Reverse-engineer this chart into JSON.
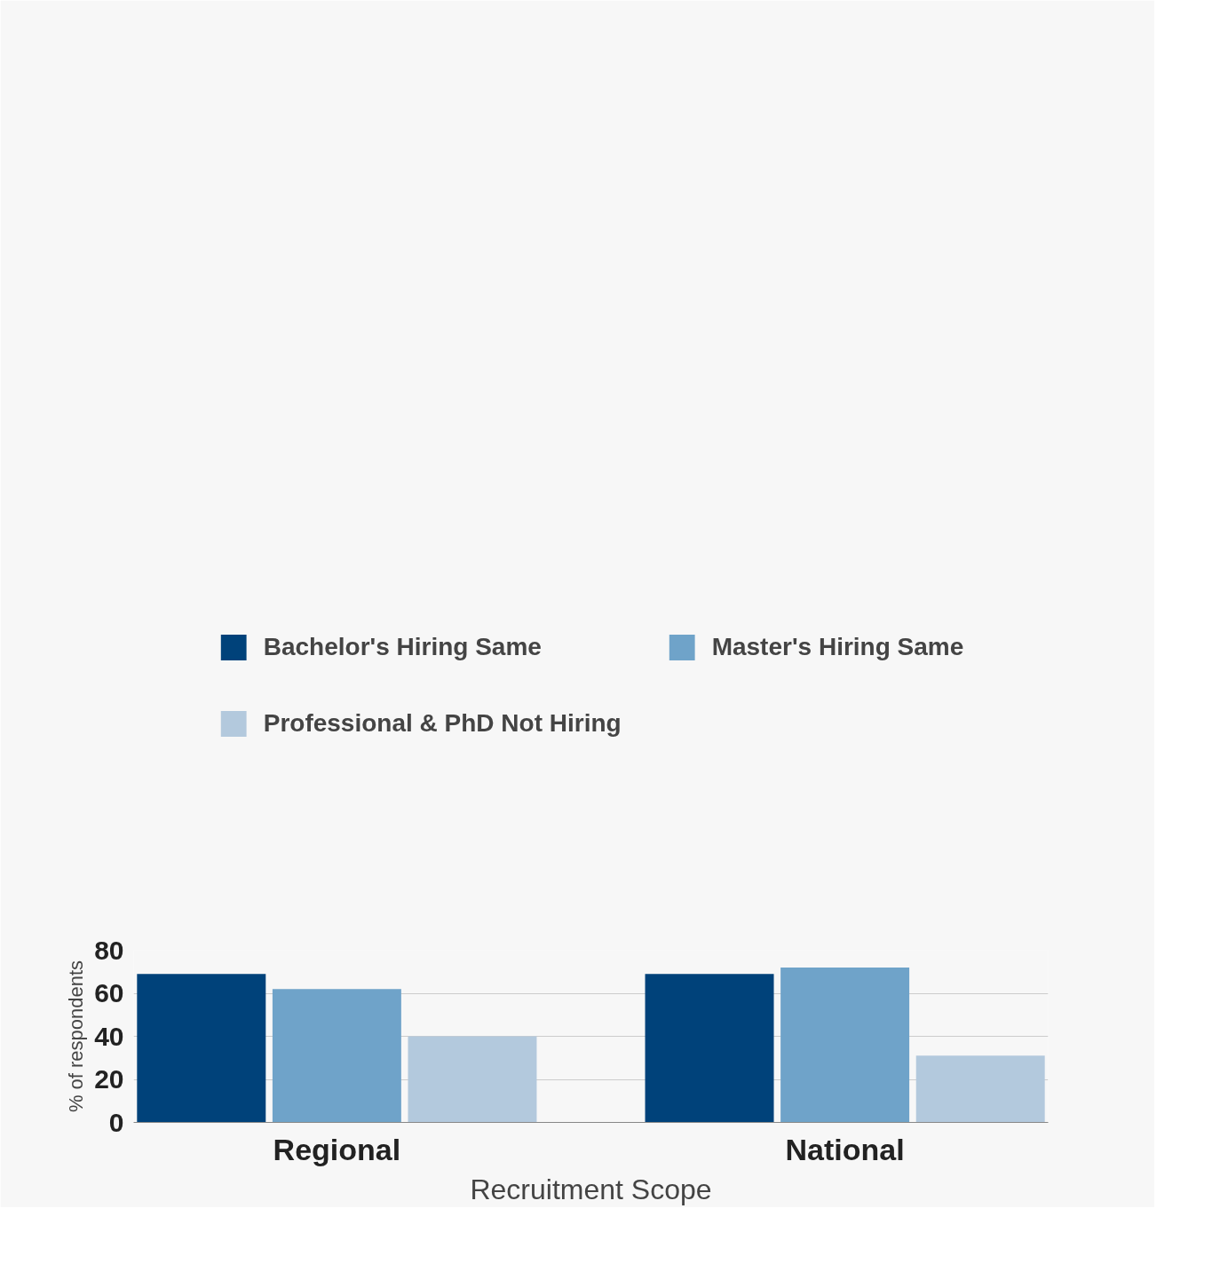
{
  "chart_data": {
    "type": "bar",
    "xlabel": "Recruitment Scope",
    "ylabel": "% of respondents",
    "categories": [
      "Regional",
      "National"
    ],
    "series": [
      {
        "name": "Bachelor's Hiring Same",
        "color": "#00427a",
        "values": [
          69,
          69
        ]
      },
      {
        "name": "Master's Hiring Same",
        "color": "#6fa3c9",
        "values": [
          62,
          72
        ]
      },
      {
        "name": "Professional & PhD Not Hiring",
        "color": "#b3c9dd",
        "values": [
          40,
          31
        ]
      }
    ],
    "ylim": [
      0,
      80
    ],
    "yticks": [
      0,
      20,
      40,
      60,
      80
    ],
    "grid": "y",
    "legend": "top"
  }
}
